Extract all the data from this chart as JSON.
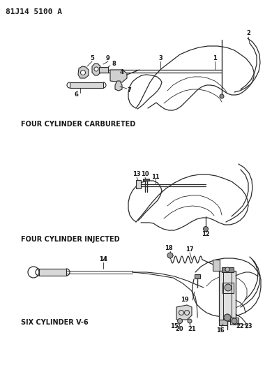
{
  "title": "81J14 5100 A",
  "background_color": "#ffffff",
  "line_color": "#2a2a2a",
  "text_color": "#1a1a1a",
  "label_carbureted": "FOUR CYLINDER CARBURETED",
  "label_injected": "FOUR CYLINDER INJECTED",
  "label_six": "SIX CYLINDER V-6",
  "figsize": [
    3.9,
    5.33
  ],
  "dpi": 100
}
